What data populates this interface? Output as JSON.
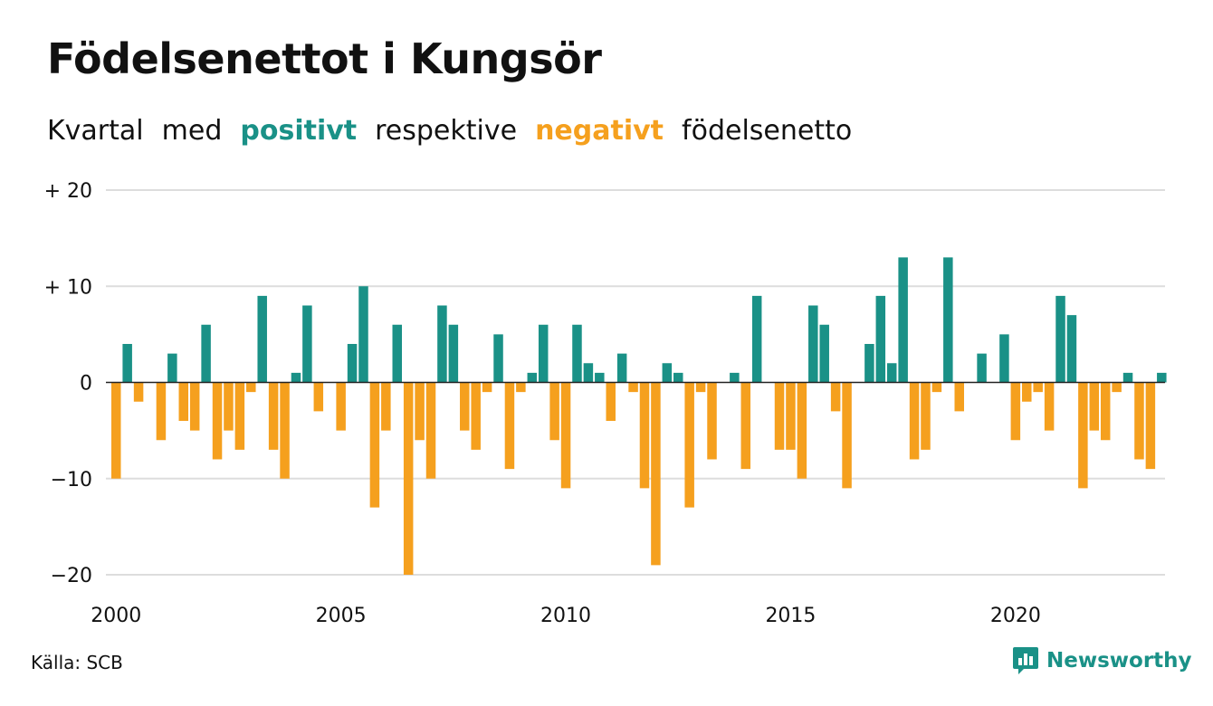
{
  "header": {
    "title": "Födelsenettot i Kungsör",
    "subtitle_1": "Kvartal",
    "subtitle_2": "med",
    "subtitle_positive": "positivt",
    "subtitle_3": "respektive",
    "subtitle_negative": "negativt",
    "subtitle_4": "födelsenetto"
  },
  "footer": {
    "source": "Källa: SCB",
    "brand": "Newsworthy",
    "brand_icon": "newsworthy-logo-icon"
  },
  "colors": {
    "positive": "#1a9187",
    "negative": "#f5a01e",
    "grid": "#dddddd",
    "axis": "#222222"
  },
  "chart_data": {
    "type": "bar",
    "title": "Födelsenettot i Kungsör",
    "subtitle": "Kvartal med positivt respektive negativt födelsenetto",
    "xlabel": "",
    "ylabel": "",
    "ylim": [
      -20,
      20
    ],
    "yticks": [
      {
        "value": 20,
        "label": "+ 20"
      },
      {
        "value": 10,
        "label": "+ 10"
      },
      {
        "value": 0,
        "label": "0"
      },
      {
        "value": -10,
        "label": "−10"
      },
      {
        "value": -20,
        "label": "−20"
      }
    ],
    "xticks": [
      "2000",
      "2005",
      "2010",
      "2015",
      "2020"
    ],
    "grid": true,
    "start_year": 2000,
    "values": [
      -10,
      4,
      -2,
      0,
      -6,
      3,
      -4,
      -5,
      6,
      -8,
      -5,
      -7,
      -1,
      9,
      -7,
      -10,
      1,
      8,
      -3,
      0,
      -5,
      4,
      10,
      -13,
      -5,
      6,
      -20,
      -6,
      -10,
      8,
      6,
      -5,
      -7,
      -1,
      5,
      -9,
      -1,
      1,
      6,
      -6,
      -11,
      6,
      2,
      1,
      -4,
      3,
      -1,
      -11,
      -19,
      2,
      1,
      -13,
      -1,
      -8,
      0,
      1,
      -9,
      9,
      0,
      -7,
      -7,
      -10,
      8,
      6,
      -3,
      -11,
      0,
      4,
      9,
      2,
      13,
      -8,
      -7,
      -1,
      13,
      -3,
      0,
      3,
      0,
      5,
      -6,
      -2,
      -1,
      -5,
      9,
      7,
      -11,
      -5,
      -6,
      -1,
      1,
      -8,
      -9,
      1
    ]
  }
}
